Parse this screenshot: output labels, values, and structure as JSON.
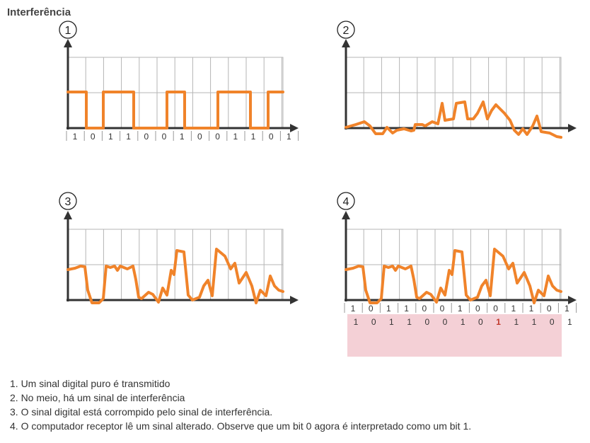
{
  "title": "Interferência",
  "accent_color": "#f0832a",
  "highlight_color": "#f4d0d6",
  "flipped_bit_color": "#c0392b",
  "panels": [
    {
      "number": "1",
      "signal": "pure-digital",
      "bit_labels": [
        "1",
        "0",
        "1",
        "1",
        "0",
        "0",
        "1",
        "0",
        "0",
        "1",
        "1",
        "0",
        "1"
      ]
    },
    {
      "number": "2",
      "signal": "interference",
      "bit_labels": []
    },
    {
      "number": "3",
      "signal": "corrupted",
      "bit_labels": []
    },
    {
      "number": "4",
      "signal": "corrupted",
      "bit_labels": [
        "1",
        "0",
        "1",
        "1",
        "0",
        "0",
        "1",
        "0",
        "0",
        "1",
        "1",
        "0",
        "1"
      ]
    }
  ],
  "received_bits": [
    "1",
    "0",
    "1",
    "1",
    "0",
    "0",
    "1",
    "0",
    "1",
    "1",
    "1",
    "0",
    "1"
  ],
  "flipped_bit_index": 8,
  "steps": [
    "1. Um sinal digital puro é transmitido",
    "2. No meio, há um sinal de interferência",
    "3. O sinal digital está corrompido pelo sinal de interferência.",
    "4. O computador receptor lê um sinal alterado. Observe que um bit 0 agora é interpretado como um bit 1."
  ]
}
